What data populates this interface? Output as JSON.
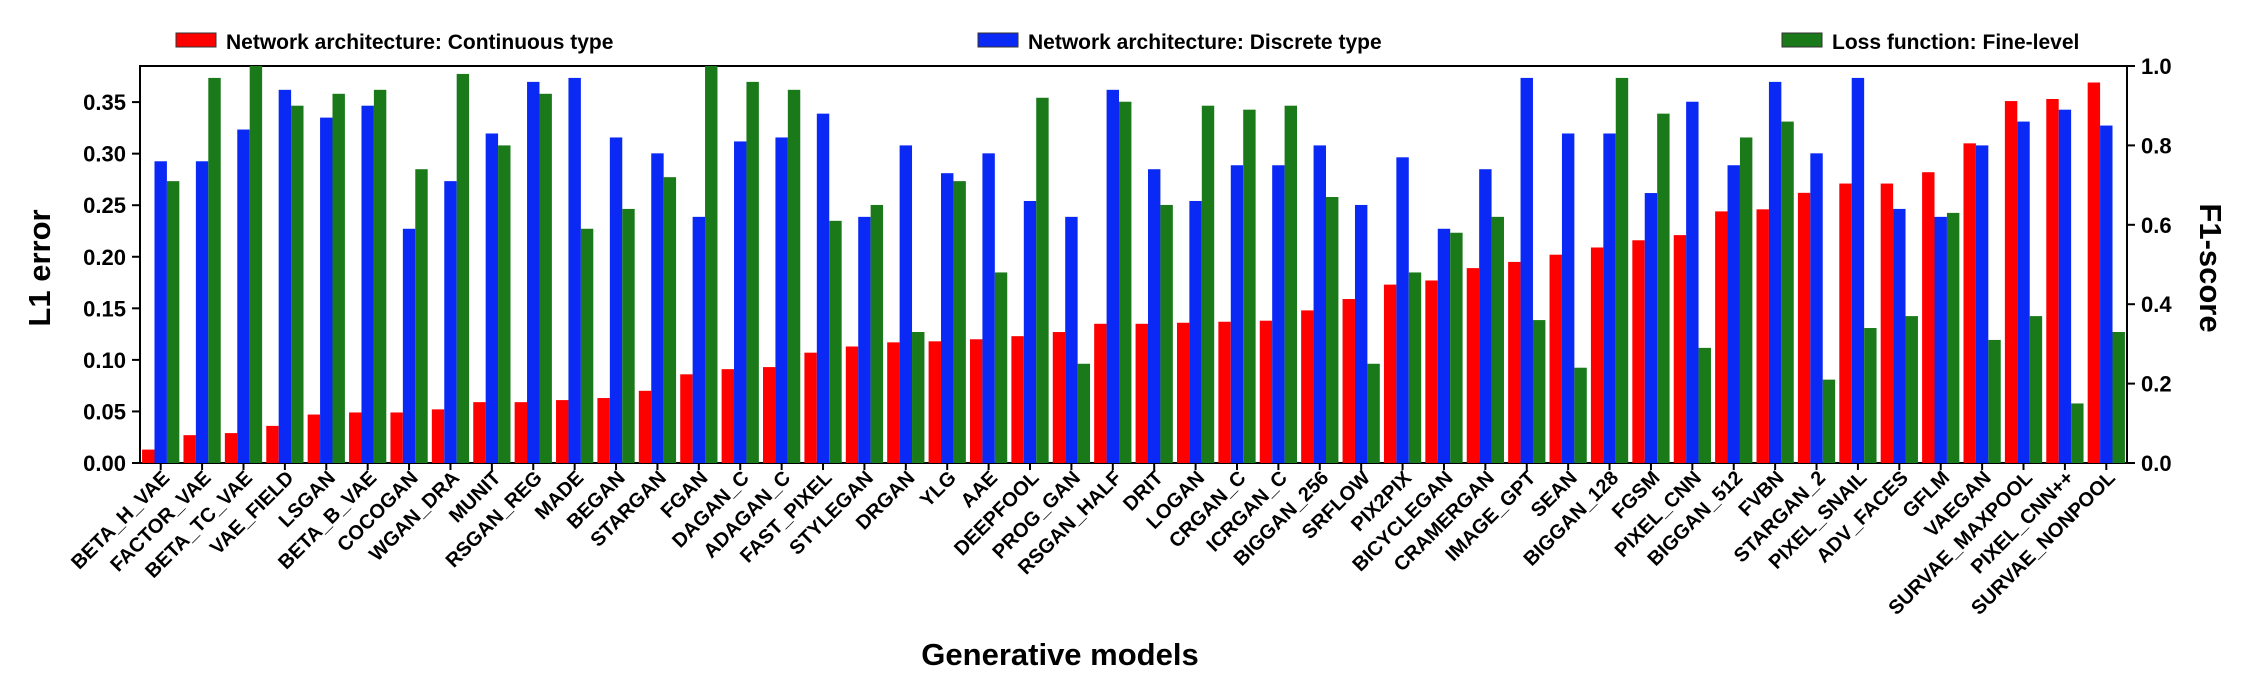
{
  "chart_data": {
    "type": "bar",
    "title": "",
    "xlabel": "Generative models",
    "ylabel": "L1 error",
    "y2label": "F1-score",
    "ylim": [
      0,
      0.385
    ],
    "y2lim": [
      0,
      1.0
    ],
    "yticks": [
      "0.00",
      "0.05",
      "0.10",
      "0.15",
      "0.20",
      "0.25",
      "0.30",
      "0.35"
    ],
    "y2ticks": [
      "0.0",
      "0.2",
      "0.4",
      "0.6",
      "0.8",
      "1.0"
    ],
    "categories": [
      "BETA_H_VAE",
      "FACTOR_VAE",
      "BETA_TC_VAE",
      "VAE_FIELD",
      "LSGAN",
      "BETA_B_VAE",
      "COCOGAN",
      "WGAN_DRA",
      "MUNIT",
      "RSGAN_REG",
      "MADE",
      "BEGAN",
      "STARGAN",
      "FGAN",
      "DAGAN_C",
      "ADAGAN_C",
      "FAST_PIXEL",
      "STYLEGAN",
      "DRGAN",
      "YLG",
      "AAE",
      "DEEPFOOL",
      "PROG_GAN",
      "RSGAN_HALF",
      "DRIT",
      "LOGAN",
      "CRGAN_C",
      "ICRGAN_C",
      "BIGGAN_256",
      "SRFLOW",
      "PIX2PIX",
      "BICYCLEGAN",
      "CRAMERGAN",
      "IMAGE_GPT",
      "SEAN",
      "BIGGAN_128",
      "FGSM",
      "PIXEL_CNN",
      "BIGGAN_512",
      "FVBN",
      "STARGAN_2",
      "PIXEL_SNAIL",
      "ADV_FACES",
      "GFLM",
      "VAEGAN",
      "SURVAE_MAXPOOL",
      "PIXEL_CNN++",
      "SURVAE_NONPOOL"
    ],
    "series": [
      {
        "name": "Network architecture: Continuous type",
        "color": "#ff0000",
        "axis": "left",
        "values": [
          0.013,
          0.027,
          0.029,
          0.036,
          0.047,
          0.049,
          0.049,
          0.052,
          0.059,
          0.059,
          0.061,
          0.063,
          0.07,
          0.086,
          0.091,
          0.093,
          0.107,
          0.113,
          0.117,
          0.118,
          0.12,
          0.123,
          0.127,
          0.135,
          0.135,
          0.136,
          0.137,
          0.138,
          0.148,
          0.159,
          0.173,
          0.177,
          0.189,
          0.195,
          0.202,
          0.209,
          0.216,
          0.221,
          0.244,
          0.246,
          0.262,
          0.271,
          0.271,
          0.282,
          0.31,
          0.351,
          0.353,
          0.369
        ]
      },
      {
        "name": "Network architecture: Discrete type",
        "color": "#0b29f5",
        "axis": "right",
        "values": [
          0.76,
          0.76,
          0.84,
          0.94,
          0.87,
          0.9,
          0.59,
          0.71,
          0.83,
          0.96,
          0.97,
          0.82,
          0.78,
          0.62,
          0.81,
          0.82,
          0.88,
          0.62,
          0.8,
          0.73,
          0.78,
          0.66,
          0.62,
          0.94,
          0.74,
          0.66,
          0.75,
          0.75,
          0.8,
          0.65,
          0.77,
          0.59,
          0.74,
          0.97,
          0.83,
          0.83,
          0.68,
          0.91,
          0.75,
          0.96,
          0.78,
          0.97,
          0.64,
          0.62,
          0.8,
          0.86,
          0.89,
          0.85
        ]
      },
      {
        "name": "Loss function: Fine-level",
        "color": "#1a7a1a",
        "axis": "right",
        "values": [
          0.71,
          0.97,
          1.01,
          0.9,
          0.93,
          0.94,
          0.74,
          0.98,
          0.8,
          0.93,
          0.59,
          0.64,
          0.72,
          1.01,
          0.96,
          0.94,
          0.61,
          0.65,
          0.33,
          0.71,
          0.48,
          0.92,
          0.25,
          0.91,
          0.65,
          0.9,
          0.89,
          0.9,
          0.67,
          0.25,
          0.48,
          0.58,
          0.62,
          0.36,
          0.24,
          0.97,
          0.88,
          0.29,
          0.82,
          0.86,
          0.21,
          0.34,
          0.37,
          0.63,
          0.31,
          0.37,
          0.15,
          0.33
        ]
      }
    ],
    "legend": "top"
  }
}
